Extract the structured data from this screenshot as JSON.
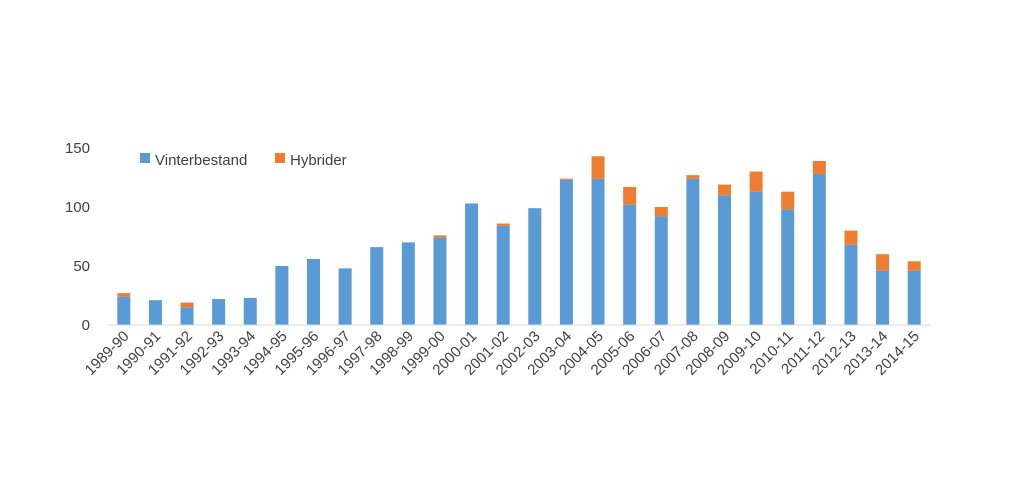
{
  "chart_data": {
    "type": "bar",
    "stacked": true,
    "categories": [
      "1989-90",
      "1990-91",
      "1991-92",
      "1992-93",
      "1993-94",
      "1994-95",
      "1995-96",
      "1996-97",
      "1997-98",
      "1998-99",
      "1999-00",
      "2000-01",
      "2001-02",
      "2002-03",
      "2003-04",
      "2004-05",
      "2005-06",
      "2006-07",
      "2007-08",
      "2008-09",
      "2009-10",
      "2010-11",
      "2011-12",
      "2012-13",
      "2013-14",
      "2014-15"
    ],
    "series": [
      {
        "name": "Vinterbestand",
        "color": "#5B9BD5",
        "values": [
          24,
          21,
          15,
          22,
          23,
          50,
          56,
          48,
          66,
          70,
          74,
          103,
          84,
          99,
          123,
          124,
          102,
          92,
          124,
          110,
          113,
          98,
          128,
          68,
          46,
          46
        ]
      },
      {
        "name": "Hybrider",
        "color": "#ED7D31",
        "values": [
          3,
          0,
          4,
          0,
          0,
          0,
          0,
          0,
          0,
          0,
          2,
          0,
          2,
          0,
          1,
          19,
          15,
          8,
          3,
          9,
          17,
          15,
          11,
          12,
          14,
          8
        ]
      }
    ],
    "title": "",
    "xlabel": "",
    "ylabel": "",
    "ylim": [
      0,
      150
    ],
    "yticks": [
      0,
      50,
      100,
      150
    ],
    "grid": false,
    "legend_position": "top-left"
  }
}
